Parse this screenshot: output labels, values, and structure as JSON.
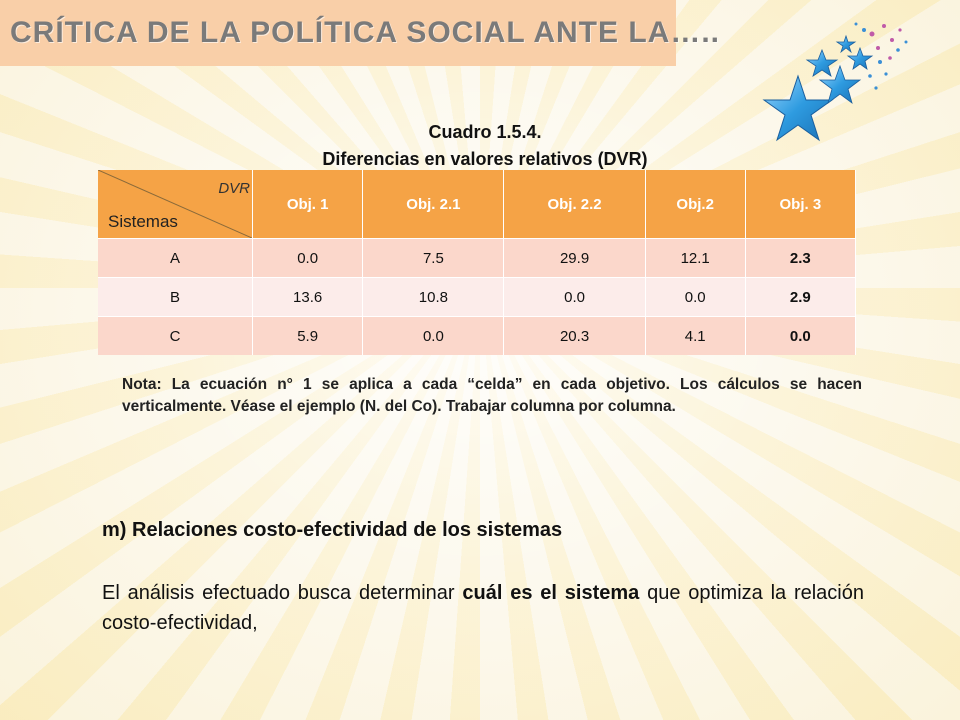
{
  "slide_title": "CRÍTICA DE LA POLÍTICA SOCIAL ANTE LA…..",
  "caption": {
    "line1": "Cuadro 1.5.4.",
    "line2": "Diferencias en valores relativos (DVR)"
  },
  "table": {
    "corner_top": "DVR",
    "corner_bottom": "Sistemas",
    "headers": [
      "Obj. 1",
      "Obj. 2.1",
      "Obj. 2.2",
      "Obj.2",
      "Obj. 3"
    ],
    "rows": [
      {
        "label": "A",
        "values": [
          "0.0",
          "7.5",
          "29.9",
          "12.1",
          "2.3"
        ]
      },
      {
        "label": "B",
        "values": [
          "13.6",
          "10.8",
          "0.0",
          "0.0",
          "2.9"
        ]
      },
      {
        "label": "C",
        "values": [
          "5.9",
          "0.0",
          "20.3",
          "4.1",
          "0.0"
        ]
      }
    ]
  },
  "note": "Nota: La ecuación n° 1 se aplica a cada “celda” en cada objetivo. Los cálculos se hacen verticalmente. Véase el ejemplo (N. del Co). Trabajar columna por columna.",
  "section_heading": "m) Relaciones costo-efectividad de los sistemas",
  "paragraph": {
    "part1": "El análisis efectuado busca determinar ",
    "bold": "cuál es el sistema",
    "part2": " que optimiza la relación costo-efectividad,"
  },
  "colors": {
    "header_orange": "#f5a346",
    "row_dark": "#fbd7cb",
    "row_light": "#fcecea",
    "title_band": "#f9cfa8",
    "star_blue": "#2e9be0"
  },
  "icons": [
    "stars-decoration-icon"
  ]
}
